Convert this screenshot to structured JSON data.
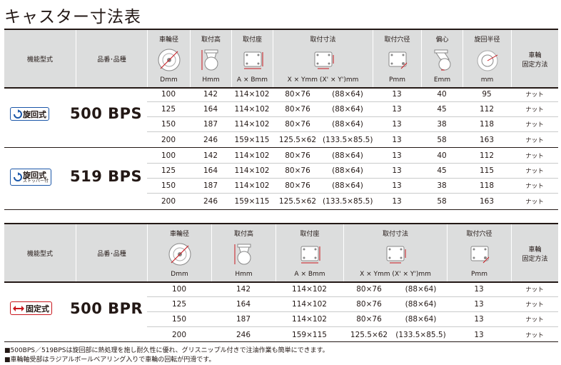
{
  "title": "キャスター寸法表",
  "header": {
    "type_label": "機能型式",
    "product_label": "品番･品種",
    "mount_method": "車輪\n固定方法",
    "cols": [
      {
        "name": "車輪径",
        "unit": "Dmm",
        "icon": "wheel-diameter-icon"
      },
      {
        "name": "取付高",
        "unit": "Hmm",
        "icon": "mount-height-icon"
      },
      {
        "name": "取付座",
        "unit": "A × Bmm",
        "icon": "mount-plate-icon"
      },
      {
        "name": "取付寸法",
        "unit": "X × Ymm (X' × Y')mm",
        "icon": "mount-dimension-icon"
      },
      {
        "name": "取付穴径",
        "unit": "Pmm",
        "icon": "hole-diameter-icon"
      },
      {
        "name": "偏心",
        "unit": "Emm",
        "icon": "offset-icon"
      },
      {
        "name": "旋回半径",
        "unit": "mm",
        "icon": "swivel-radius-icon"
      }
    ]
  },
  "header2": {
    "unit4": "X × Ymm (X' × Y')mm"
  },
  "groups": [
    {
      "badge": "旋回式",
      "badge_sub": "",
      "model": "500 BPS",
      "rows": [
        {
          "d": "100",
          "h": "142",
          "ab": "114×102",
          "xy": "80×76",
          "xy2": "(88×64)",
          "p": "13",
          "e": "40",
          "r": "95",
          "m": "ナット"
        },
        {
          "d": "125",
          "h": "164",
          "ab": "114×102",
          "xy": "80×76",
          "xy2": "(88×64)",
          "p": "13",
          "e": "45",
          "r": "112",
          "m": "ナット"
        },
        {
          "d": "150",
          "h": "187",
          "ab": "114×102",
          "xy": "80×76",
          "xy2": "(88×64)",
          "p": "13",
          "e": "38",
          "r": "118",
          "m": "ナット"
        },
        {
          "d": "200",
          "h": "246",
          "ab": "159×115",
          "xy": "125.5×62",
          "xy2": "(133.5×85.5)",
          "p": "13",
          "e": "58",
          "r": "163",
          "m": "ナット"
        }
      ]
    },
    {
      "badge": "旋回式",
      "badge_sub": "ストッパー付",
      "model": "519 BPS",
      "rows": [
        {
          "d": "100",
          "h": "142",
          "ab": "114×102",
          "xy": "80×76",
          "xy2": "(88×64)",
          "p": "13",
          "e": "40",
          "r": "112",
          "m": "ナット"
        },
        {
          "d": "125",
          "h": "164",
          "ab": "114×102",
          "xy": "80×76",
          "xy2": "(88×64)",
          "p": "13",
          "e": "45",
          "r": "115",
          "m": "ナット"
        },
        {
          "d": "150",
          "h": "187",
          "ab": "114×102",
          "xy": "80×76",
          "xy2": "(88×64)",
          "p": "13",
          "e": "38",
          "r": "118",
          "m": "ナット"
        },
        {
          "d": "200",
          "h": "246",
          "ab": "159×115",
          "xy": "125.5×62",
          "xy2": "(133.5×85.5)",
          "p": "13",
          "e": "58",
          "r": "163",
          "m": "ナット"
        }
      ]
    },
    {
      "badge": "固定式",
      "badge_sub": "",
      "model": "500 BPR",
      "rows": [
        {
          "d": "100",
          "h": "142",
          "ab": "114×102",
          "xy": "80×76",
          "xy2": "(88×64)",
          "p": "13",
          "m": "ナット"
        },
        {
          "d": "125",
          "h": "164",
          "ab": "114×102",
          "xy": "80×76",
          "xy2": "(88×64)",
          "p": "13",
          "m": "ナット"
        },
        {
          "d": "150",
          "h": "187",
          "ab": "114×102",
          "xy": "80×76",
          "xy2": "(88×64)",
          "p": "13",
          "m": "ナット"
        },
        {
          "d": "200",
          "h": "246",
          "ab": "159×115",
          "xy": "125.5×62",
          "xy2": "(133.5×85.5)",
          "p": "13",
          "m": "ナット"
        }
      ]
    }
  ],
  "notes": [
    "■500BPS／519BPSは旋回部に熱処理を施し耐久性に優れ、グリスニップル付きで注油作業も簡単にできます。",
    "■車輪軸受部はラジアルボールベアリング入りで車輪の回転が円滑です。"
  ],
  "colors": {
    "swivel_blue": "#1a56a8",
    "fixed_red": "#c8161d",
    "header_gray": "#dcdddd"
  }
}
